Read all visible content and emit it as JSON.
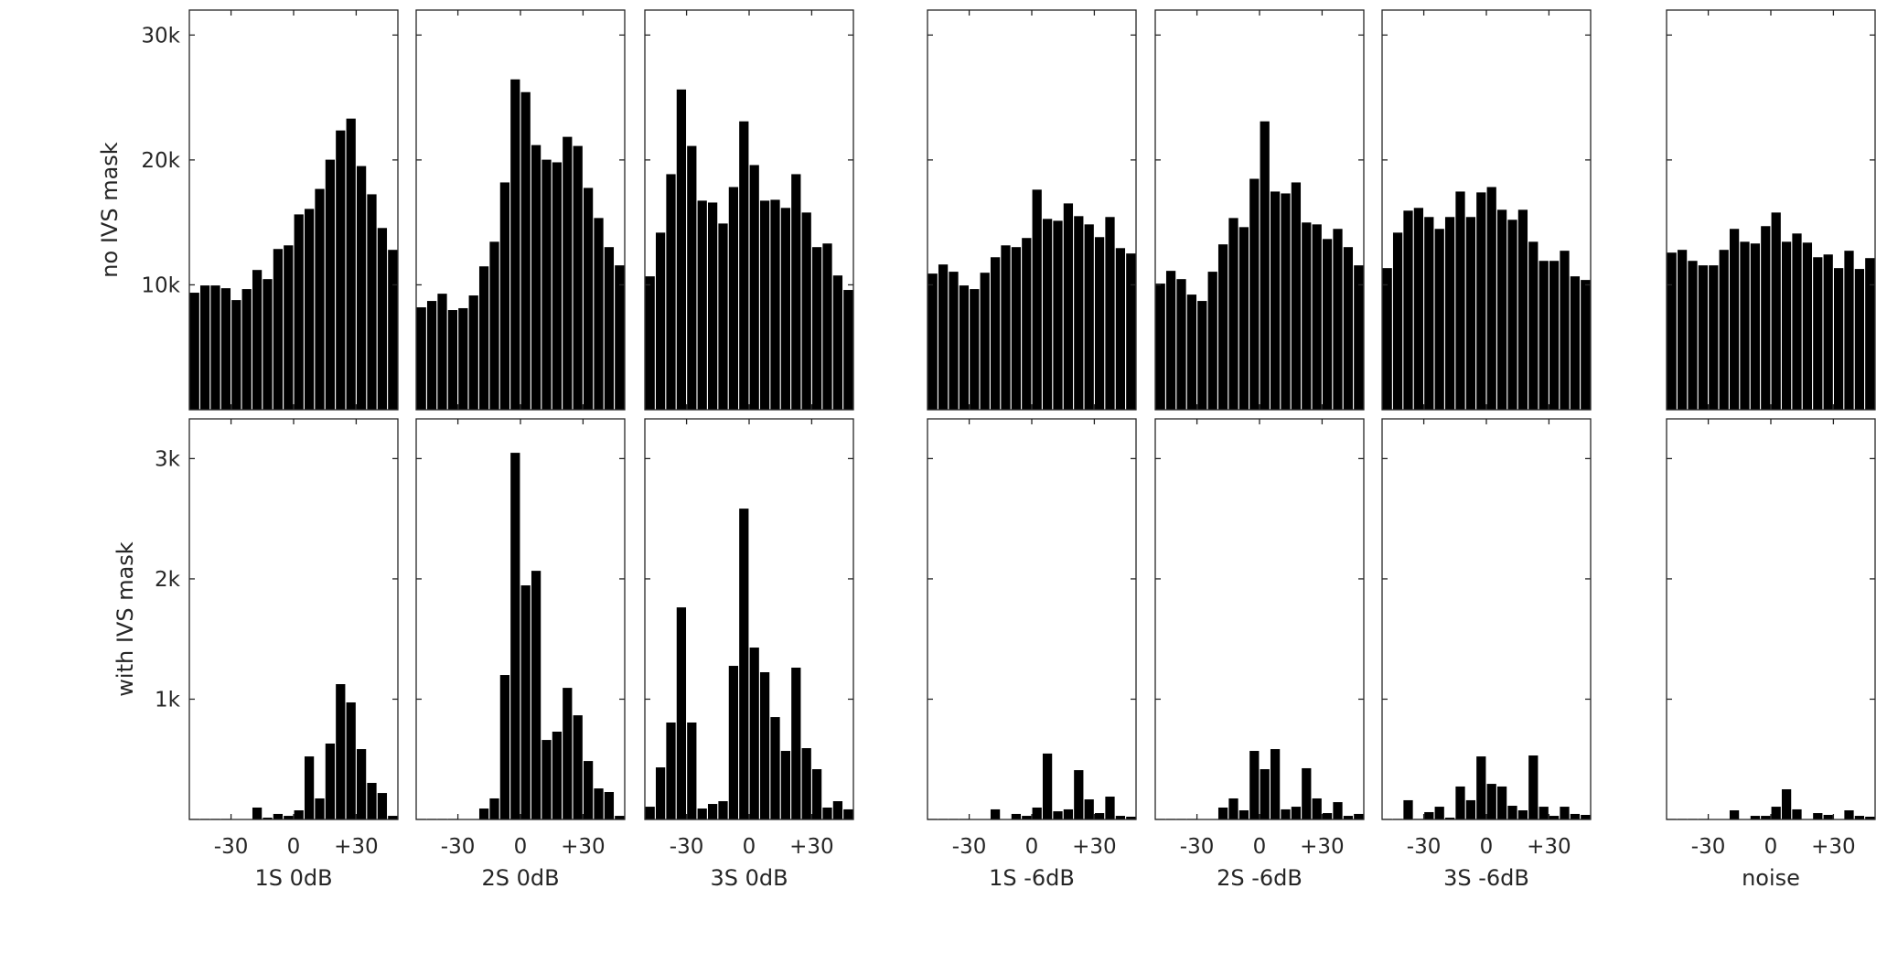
{
  "chart_data": {
    "type": "bar",
    "layout": "2 rows x 7 panels",
    "bar_color": "#000000",
    "axes_color": "#262626",
    "x_bin_centers": [
      -47.5,
      -42.5,
      -37.5,
      -32.5,
      -27.5,
      -22.5,
      -17.5,
      -12.5,
      -7.5,
      -2.5,
      2.5,
      7.5,
      12.5,
      17.5,
      22.5,
      27.5,
      32.5,
      37.5,
      42.5,
      47.5
    ],
    "xlim": [
      -50,
      50
    ],
    "xticks": [
      -30,
      0,
      30
    ],
    "xtick_labels": [
      "-30",
      "0",
      "+30"
    ],
    "rows": [
      {
        "key": "no_mask",
        "ylabel": "no IVS mask",
        "ylim": [
          0,
          32000
        ],
        "yticks": [
          10000,
          20000,
          30000
        ],
        "ytick_labels": [
          "10k",
          "20k",
          "30k"
        ]
      },
      {
        "key": "with_mask",
        "ylabel": "with IVS mask",
        "ylim": [
          0,
          3330
        ],
        "yticks": [
          1000,
          2000,
          3000
        ],
        "ytick_labels": [
          "1k",
          "2k",
          "3k"
        ]
      }
    ],
    "panels": [
      {
        "xlabel": "1S 0dB",
        "no_mask": [
          9370,
          9950,
          9950,
          9730,
          8780,
          9660,
          11190,
          10460,
          12870,
          13160,
          15640,
          16080,
          17680,
          20020,
          22360,
          23310,
          19510,
          17250,
          14550,
          12800
        ],
        "with_mask": [
          5,
          5,
          5,
          5,
          0,
          0,
          99,
          15,
          46,
          30,
          76,
          524,
          175,
          631,
          1125,
          973,
          585,
          304,
          220,
          30
        ]
      },
      {
        "xlabel": "2S 0dB",
        "no_mask": [
          8200,
          8710,
          9290,
          7980,
          8130,
          9150,
          11480,
          13450,
          18200,
          26450,
          25430,
          21190,
          20020,
          19810,
          21850,
          21120,
          17760,
          15350,
          13020,
          11560
        ],
        "with_mask": [
          5,
          5,
          5,
          5,
          0,
          0,
          91,
          175,
          1201,
          3048,
          1946,
          2067,
          661,
          730,
          1094,
          866,
          486,
          258,
          228,
          30
        ]
      },
      {
        "xlabel": "3S 0dB",
        "no_mask": [
          10680,
          14180,
          18860,
          25640,
          21120,
          16740,
          16590,
          14910,
          17830,
          23090,
          19590,
          16740,
          16810,
          16160,
          18860,
          15790,
          13020,
          13310,
          10750,
          9590
        ],
        "with_mask": [
          106,
          433,
          806,
          1763,
          806,
          91,
          129,
          152,
          1277,
          2584,
          1429,
          1224,
          851,
          570,
          1262,
          593,
          418,
          99,
          152,
          84
        ]
      },
      {
        "xlabel": "1S -6dB",
        "no_mask": [
          10900,
          11630,
          11050,
          9950,
          9660,
          10970,
          12210,
          13160,
          13020,
          13750,
          17620,
          15280,
          15130,
          16520,
          15500,
          14840,
          13820,
          15430,
          12940,
          12510
        ],
        "with_mask": [
          5,
          5,
          5,
          5,
          0,
          0,
          84,
          0,
          46,
          30,
          99,
          548,
          68,
          84,
          410,
          167,
          53,
          190,
          30,
          23
        ]
      },
      {
        "xlabel": "2S -6dB",
        "no_mask": [
          10100,
          11120,
          10460,
          9220,
          8710,
          11050,
          13240,
          15350,
          14620,
          18490,
          23090,
          17470,
          17320,
          18200,
          14990,
          14840,
          13670,
          14480,
          13020,
          11560
        ],
        "with_mask": [
          5,
          5,
          5,
          5,
          0,
          0,
          99,
          175,
          76,
          570,
          418,
          585,
          84,
          106,
          426,
          175,
          53,
          144,
          30,
          46
        ]
      },
      {
        "xlabel": "3S -6dB",
        "no_mask": [
          11340,
          14180,
          15940,
          16160,
          15430,
          14480,
          15430,
          17470,
          15430,
          17400,
          17830,
          16010,
          15210,
          16010,
          13450,
          11920,
          11920,
          12730,
          10680,
          10390
        ],
        "with_mask": [
          5,
          5,
          160,
          5,
          61,
          106,
          15,
          274,
          160,
          524,
          296,
          274,
          114,
          76,
          532,
          106,
          30,
          106,
          46,
          38
        ]
      },
      {
        "xlabel": "noise",
        "no_mask": [
          12580,
          12800,
          11920,
          11560,
          11560,
          12800,
          14480,
          13450,
          13310,
          14700,
          15790,
          13450,
          14110,
          13380,
          12210,
          12430,
          11340,
          12730,
          11270,
          12140
        ],
        "with_mask": [
          5,
          5,
          5,
          5,
          0,
          0,
          76,
          0,
          30,
          30,
          106,
          251,
          84,
          0,
          53,
          38,
          0,
          76,
          30,
          23
        ]
      }
    ]
  }
}
